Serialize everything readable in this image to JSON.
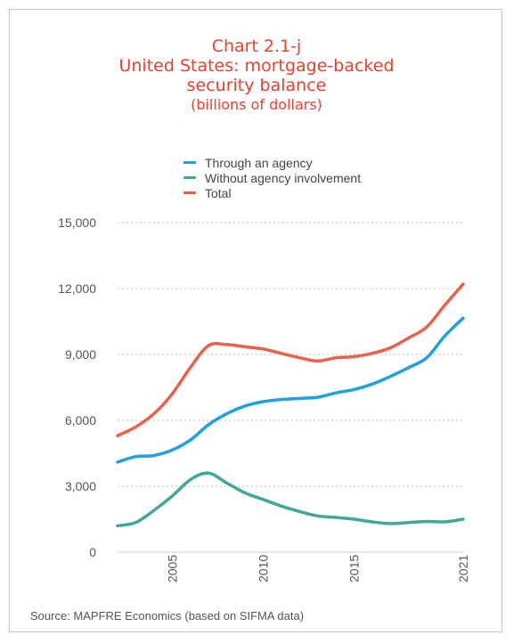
{
  "chart_data": {
    "type": "line",
    "title_line1": "Chart 2.1-j",
    "title_line2": "United States: mortgage-backed",
    "title_line3": "security balance",
    "subtitle": "(billions of dollars)",
    "x": [
      2002,
      2003,
      2004,
      2005,
      2006,
      2007,
      2008,
      2009,
      2010,
      2011,
      2012,
      2013,
      2014,
      2015,
      2016,
      2017,
      2018,
      2019,
      2020,
      2021
    ],
    "xlim": [
      2002,
      2021
    ],
    "x_ticks": [
      "2005",
      "2010",
      "2015",
      "2021"
    ],
    "ylim": [
      0,
      15000
    ],
    "y_ticks": [
      "0",
      "3,000",
      "6,000",
      "9,000",
      "12,000",
      "15,000"
    ],
    "grid": true,
    "legend_position": "top-center",
    "series": [
      {
        "name": "Through an agency",
        "color": "#1fa0e0",
        "values": [
          4100,
          4350,
          4400,
          4650,
          5100,
          5800,
          6300,
          6650,
          6850,
          6950,
          7000,
          7050,
          7250,
          7400,
          7650,
          8000,
          8400,
          8850,
          9850,
          10650
        ]
      },
      {
        "name": "Without agency involvement",
        "color": "#3fa896",
        "values": [
          1200,
          1350,
          1900,
          2550,
          3300,
          3600,
          3150,
          2700,
          2400,
          2100,
          1850,
          1650,
          1580,
          1500,
          1380,
          1300,
          1350,
          1400,
          1380,
          1500
        ]
      },
      {
        "name": "Total",
        "color": "#e9614b",
        "values": [
          5300,
          5700,
          6300,
          7200,
          8400,
          9400,
          9450,
          9350,
          9250,
          9050,
          8850,
          8700,
          8850,
          8900,
          9050,
          9300,
          9750,
          10250,
          11250,
          12200
        ]
      }
    ]
  },
  "source": "Source: MAPFRE Economics (based on SIFMA data)"
}
